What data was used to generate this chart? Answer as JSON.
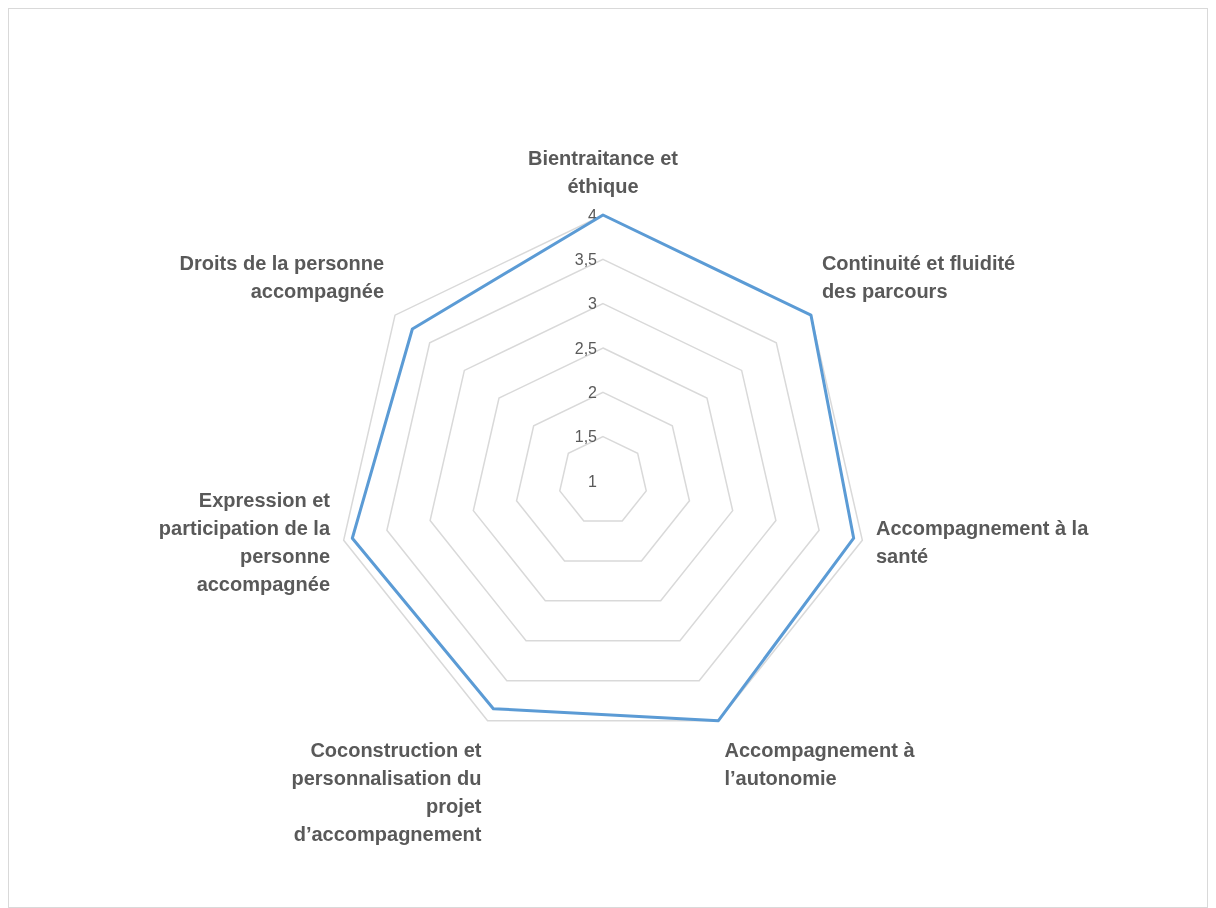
{
  "chart_data": {
    "type": "radar",
    "categories": [
      "Bientraitance et éthique",
      "Continuité et fluidité des parcours",
      "Accompagnement à la santé",
      "Accompagnement à l’autonomie",
      "Coconstruction et personnalisation du projet d’accompagnement",
      "Expression et participation de la personne accompagnée",
      "Droits de la personne accompagnée"
    ],
    "series": [
      {
        "color": "#5b9bd5",
        "values": [
          4,
          4,
          3.9,
          4,
          3.85,
          3.9,
          3.75
        ]
      }
    ],
    "ylim": [
      1,
      4
    ],
    "yticks": [
      {
        "value": 1,
        "label": "1"
      },
      {
        "value": 1.5,
        "label": "1,5"
      },
      {
        "value": 2,
        "label": "2"
      },
      {
        "value": 2.5,
        "label": "2,5"
      },
      {
        "value": 3,
        "label": "3"
      },
      {
        "value": 3.5,
        "label": "3,5"
      },
      {
        "value": 4,
        "label": "4"
      }
    ],
    "grid": true
  }
}
